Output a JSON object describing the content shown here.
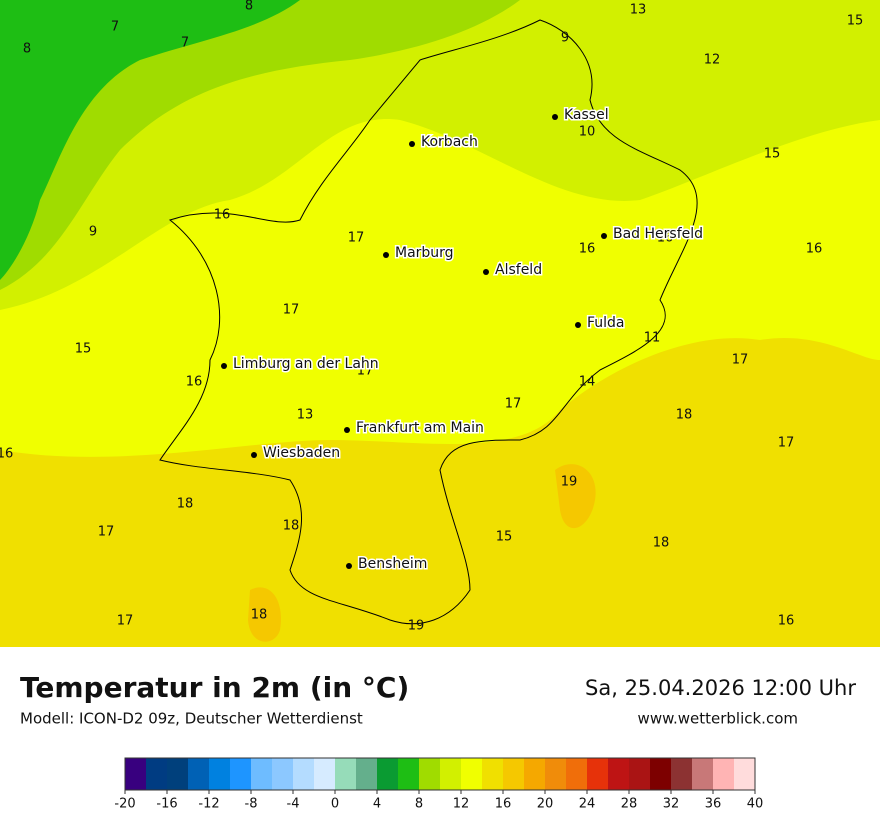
{
  "map": {
    "temperature_labels": [
      8,
      13,
      15,
      7,
      7,
      8,
      9,
      12,
      10,
      15,
      16,
      9,
      17,
      16,
      16,
      16,
      17,
      11,
      15,
      17,
      16,
      17,
      14,
      13,
      17,
      18,
      17,
      16,
      19,
      18,
      17,
      18,
      15,
      18,
      18,
      17,
      19,
      16
    ],
    "cities": [
      "Kassel",
      "Korbach",
      "Bad Hersfeld",
      "Marburg",
      "Alsfeld",
      "Fulda",
      "Limburg an der Lahn",
      "Frankfurt am Main",
      "Wiesbaden",
      "Bensheim"
    ]
  },
  "footer": {
    "title": "Temperatur in 2m (in °C)",
    "subtitle": "Modell: ICON-D2 09z, Deutscher Wetterdienst",
    "datetime": "Sa, 25.04.2026 12:00 Uhr",
    "website": "www.wetterblick.com"
  },
  "colorbar": {
    "xlim": [
      -20,
      40
    ],
    "ticks": [
      -20,
      -16,
      -12,
      -8,
      -4,
      0,
      4,
      8,
      12,
      16,
      20,
      24,
      28,
      32,
      36,
      40
    ],
    "colors": [
      "#38007f",
      "#003c82",
      "#00407c",
      "#0061b5",
      "#0081e0",
      "#1e95ff",
      "#6ebcff",
      "#8cc8ff",
      "#b4dcff",
      "#d6ebff",
      "#96dcb9",
      "#64af8c",
      "#0a9b32",
      "#1ebe14",
      "#a0dc00",
      "#d2f000",
      "#f0ff00",
      "#f0e000",
      "#f5c800",
      "#f5a800",
      "#f08c0a",
      "#f06e0a",
      "#e6320a",
      "#be1414",
      "#aa1414",
      "#7d0000",
      "#8c3232",
      "#c87878",
      "#ffb4b4",
      "#ffdcdc"
    ]
  }
}
